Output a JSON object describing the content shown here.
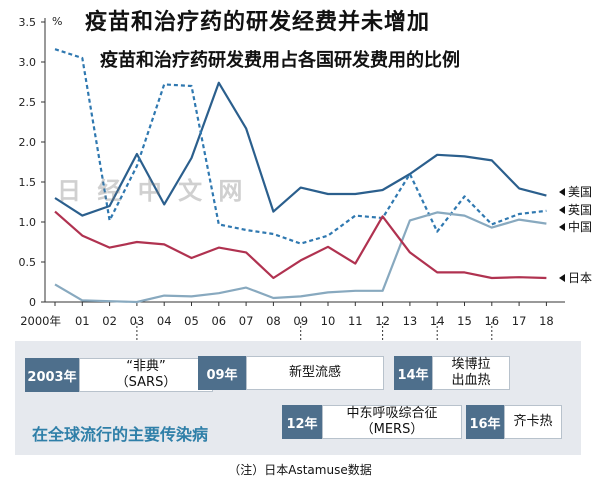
{
  "title": "疫苗和治疗药的研发经费并未增加",
  "subtitle": "疫苗和治疗药研发费用占各国研发费用的比例",
  "watermark": "日 经 中 文 网",
  "note": "（注）日本Astamuse数据",
  "colors": {
    "usa": "#2b5f8d",
    "uk": "#2f78b0",
    "china": "#88a9bf",
    "japan": "#b03250",
    "band": "#e6e9ee",
    "badge": "#4e6f8c",
    "caption": "#2f7fa8"
  },
  "chart_data": {
    "type": "line",
    "unit_label": "%",
    "ylim": [
      0,
      3.5
    ],
    "y_ticks": [
      "0",
      "0.5",
      "1.0",
      "1.5",
      "2.0",
      "2.5",
      "3.0",
      "3.5"
    ],
    "x_tick_labels": [
      "2000年",
      "01",
      "02",
      "03",
      "04",
      "05",
      "06",
      "07",
      "08",
      "09",
      "10",
      "11",
      "12",
      "13",
      "14",
      "15",
      "16",
      "17",
      "18"
    ],
    "x": [
      2000,
      2001,
      2002,
      2003,
      2004,
      2005,
      2006,
      2007,
      2008,
      2009,
      2010,
      2011,
      2012,
      2013,
      2014,
      2015,
      2016,
      2017,
      2018
    ],
    "grid": false,
    "legend_placement": "right end of lines",
    "series": [
      {
        "name": "美国",
        "key": "usa",
        "style": "solid",
        "values": [
          1.3,
          1.08,
          1.2,
          1.85,
          1.22,
          1.8,
          2.74,
          2.17,
          1.13,
          1.43,
          1.35,
          1.35,
          1.4,
          1.6,
          1.84,
          1.82,
          1.77,
          1.42,
          1.33
        ]
      },
      {
        "name": "英国",
        "key": "uk",
        "style": "dashed",
        "values": [
          3.16,
          3.05,
          1.02,
          1.7,
          2.72,
          2.7,
          0.97,
          0.9,
          0.85,
          0.73,
          0.83,
          1.08,
          1.05,
          1.6,
          0.88,
          1.32,
          0.97,
          1.1,
          1.14
        ]
      },
      {
        "name": "中国",
        "key": "china",
        "style": "solid",
        "values": [
          0.22,
          0.02,
          0.01,
          0.0,
          0.08,
          0.07,
          0.11,
          0.18,
          0.05,
          0.07,
          0.12,
          0.14,
          0.14,
          1.02,
          1.12,
          1.08,
          0.93,
          1.03,
          0.98
        ]
      },
      {
        "name": "日本",
        "key": "japan",
        "style": "solid",
        "values": [
          1.13,
          0.83,
          0.68,
          0.75,
          0.72,
          0.55,
          0.68,
          0.62,
          0.3,
          0.52,
          0.69,
          0.48,
          1.07,
          0.62,
          0.37,
          0.37,
          0.3,
          0.31,
          0.3
        ]
      }
    ]
  },
  "epidemics": {
    "caption": "在全球流行的主要传染病",
    "items": [
      {
        "year": "2003年",
        "name": "“非典”\n（SARS）",
        "at": 2003
      },
      {
        "year": "09年",
        "name": "新型流感",
        "at": 2009
      },
      {
        "year": "14年",
        "name": "埃博拉\n出血热",
        "at": 2014
      },
      {
        "year": "12年",
        "name": "中东呼吸综合征\n（MERS）",
        "at": 2012
      },
      {
        "year": "16年",
        "name": "齐卡热",
        "at": 2016
      }
    ]
  }
}
